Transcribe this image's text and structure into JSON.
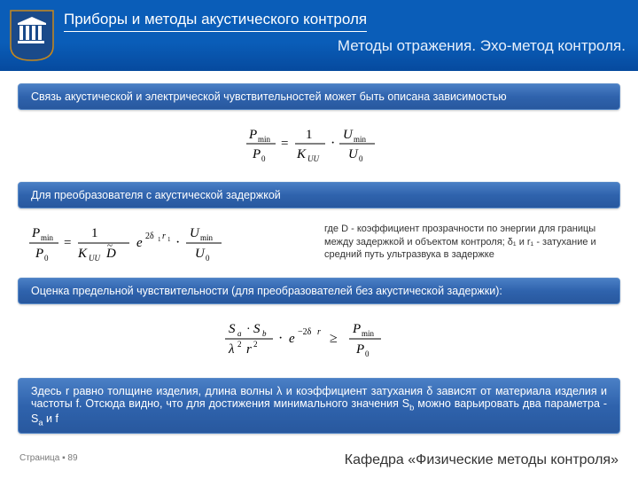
{
  "header": {
    "title": "Приборы и методы акустического контроля",
    "subtitle": "Методы отражения. Эхо-метод контроля.",
    "logo": {
      "shield_bg": "#1a4a8a",
      "pillar_color": "#ffffff",
      "border": "#c8881a"
    },
    "band_gradient": [
      "#0a5db8",
      "#064a9e"
    ]
  },
  "bars": {
    "bg_gradient": [
      "#4a7fc5",
      "#2f63ad",
      "#28589e"
    ],
    "text_color": "#ffffff",
    "font_size": 12.5,
    "b1": "Связь акустической и электрической чувствительностей может быть описана зависимостью",
    "b2": "Для преобразователя с акустической задержкой",
    "b3": "Оценка предельной чувствительности (для преобразователей без акустической задержки):",
    "b4_html": "Здесь r равно толщине изделия, длина волны λ и коэффициент затухания δ зависят от материала изделия и частоты f. Отсюда видно, что для достижения минимального значения S<sub>b</sub> можно варьировать два параметра - S<sub>a</sub> и f"
  },
  "formulas": {
    "f1": {
      "Pmin": "P",
      "P0": "P",
      "sub_min": "min",
      "sub_0": "0",
      "K": "K",
      "K_sub": "UU",
      "Umin": "U",
      "U_sub_min": "min",
      "U0": "U",
      "U_sub_0": "0"
    },
    "f2": {
      "Dtilde": "D̃",
      "exp": "e",
      "exp_pow": "2δ₁r₁"
    },
    "f3": {
      "Sa": "S",
      "Sa_sub": "a",
      "Sb": "S",
      "Sb_sub": "b",
      "lambda": "λ",
      "r": "r",
      "exp": "e",
      "exp_pow": "−2δr"
    },
    "color": "#000000",
    "font": "serif"
  },
  "note": {
    "text": "где D - коэффициент прозрачности по энергии для границы между задержкой и объектом контроля; δ₁ и r₁ - затухание и средний путь ультразвука в задержке",
    "font_size": 11,
    "color": "#333333"
  },
  "footer": {
    "page_label": "Страница ▪ 89",
    "dept": "Кафедра «Физические методы контроля»",
    "page_color": "#7a7a7a",
    "dept_color": "#333333"
  }
}
